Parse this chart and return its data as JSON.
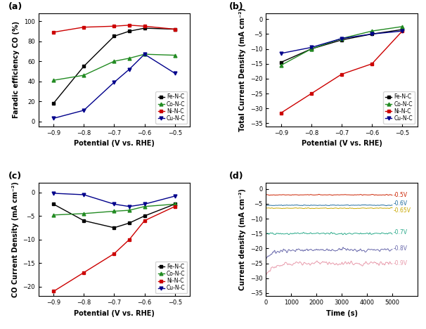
{
  "panel_a": {
    "title": "(a)",
    "xlabel": "Potential (V vs. RHE)",
    "ylabel": "Faradic efficiency CO (%)",
    "xlim": [
      -0.95,
      -0.45
    ],
    "ylim": [
      -5,
      108
    ],
    "xticks": [
      -0.9,
      -0.8,
      -0.7,
      -0.6,
      -0.5
    ],
    "yticks": [
      0,
      20,
      40,
      60,
      80,
      100
    ],
    "series": {
      "Fe-N-C": {
        "x": [
          -0.9,
          -0.8,
          -0.7,
          -0.65,
          -0.6,
          -0.5
        ],
        "y": [
          18,
          55,
          85,
          90,
          93,
          92
        ],
        "color": "#000000",
        "marker": "s",
        "linestyle": "-"
      },
      "Co-N-C": {
        "x": [
          -0.9,
          -0.8,
          -0.7,
          -0.65,
          -0.6,
          -0.5
        ],
        "y": [
          41,
          46,
          60,
          63,
          67,
          66
        ],
        "color": "#228B22",
        "marker": "^",
        "linestyle": "-"
      },
      "Ni-N-C": {
        "x": [
          -0.9,
          -0.8,
          -0.7,
          -0.65,
          -0.6,
          -0.5
        ],
        "y": [
          89,
          94,
          95,
          96,
          95,
          92
        ],
        "color": "#CC0000",
        "marker": "s",
        "linestyle": "-"
      },
      "Cu-N-C": {
        "x": [
          -0.9,
          -0.8,
          -0.7,
          -0.65,
          -0.6,
          -0.5
        ],
        "y": [
          3,
          11,
          39,
          52,
          67,
          48
        ],
        "color": "#00008B",
        "marker": "v",
        "linestyle": "-"
      }
    }
  },
  "panel_b": {
    "title": "(b)",
    "xlabel": "Potential (V vs. RHE)",
    "ylabel": "Total Current Density (mA cm⁻²)",
    "xlim": [
      -0.95,
      -0.45
    ],
    "ylim": [
      -36,
      2
    ],
    "xticks": [
      -0.9,
      -0.8,
      -0.7,
      -0.6,
      -0.5
    ],
    "yticks": [
      0,
      -5,
      -10,
      -15,
      -20,
      -25,
      -30,
      -35
    ],
    "series": {
      "Fe-N-C": {
        "x": [
          -0.9,
          -0.8,
          -0.7,
          -0.6,
          -0.5
        ],
        "y": [
          -14.5,
          -10.0,
          -7.0,
          -5.0,
          -3.5
        ],
        "color": "#000000",
        "marker": "s",
        "linestyle": "-"
      },
      "Co-N-C": {
        "x": [
          -0.9,
          -0.8,
          -0.7,
          -0.6,
          -0.5
        ],
        "y": [
          -15.5,
          -10.0,
          -6.5,
          -4.0,
          -2.5
        ],
        "color": "#228B22",
        "marker": "^",
        "linestyle": "-"
      },
      "Ni-N-C": {
        "x": [
          -0.9,
          -0.8,
          -0.7,
          -0.6,
          -0.5
        ],
        "y": [
          -31.5,
          -25.0,
          -18.5,
          -15.0,
          -4.0
        ],
        "color": "#CC0000",
        "marker": "s",
        "linestyle": "-"
      },
      "Cu-N-C": {
        "x": [
          -0.9,
          -0.8,
          -0.7,
          -0.6,
          -0.5
        ],
        "y": [
          -11.5,
          -9.5,
          -6.5,
          -5.0,
          -4.0
        ],
        "color": "#00008B",
        "marker": "v",
        "linestyle": "-"
      }
    }
  },
  "panel_c": {
    "title": "(c)",
    "xlabel": "Potential (V vs. RHE)",
    "ylabel": "CO Current Density (mA cm⁻²)",
    "xlim": [
      -0.95,
      -0.45
    ],
    "ylim": [
      -22,
      2
    ],
    "xticks": [
      -0.9,
      -0.8,
      -0.7,
      -0.6,
      -0.5
    ],
    "yticks": [
      0,
      -5,
      -10,
      -15,
      -20
    ],
    "series": {
      "Fe-N-C": {
        "x": [
          -0.9,
          -0.8,
          -0.7,
          -0.65,
          -0.6,
          -0.5
        ],
        "y": [
          -2.5,
          -6.0,
          -7.5,
          -6.5,
          -5.0,
          -2.5
        ],
        "color": "#000000",
        "marker": "s",
        "linestyle": "-"
      },
      "Co-N-C": {
        "x": [
          -0.9,
          -0.8,
          -0.7,
          -0.65,
          -0.6,
          -0.5
        ],
        "y": [
          -4.8,
          -4.5,
          -4.0,
          -3.8,
          -3.0,
          -2.5
        ],
        "color": "#228B22",
        "marker": "^",
        "linestyle": "-"
      },
      "Ni-N-C": {
        "x": [
          -0.9,
          -0.8,
          -0.7,
          -0.65,
          -0.6,
          -0.5
        ],
        "y": [
          -21.0,
          -17.0,
          -13.0,
          -10.0,
          -6.0,
          -3.0
        ],
        "color": "#CC0000",
        "marker": "s",
        "linestyle": "-"
      },
      "Cu-N-C": {
        "x": [
          -0.9,
          -0.8,
          -0.7,
          -0.65,
          -0.6,
          -0.5
        ],
        "y": [
          -0.2,
          -0.5,
          -2.5,
          -3.0,
          -2.5,
          -0.8
        ],
        "color": "#00008B",
        "marker": "v",
        "linestyle": "-"
      }
    }
  },
  "panel_d": {
    "title": "(d)",
    "xlabel": "Time (s)",
    "ylabel": "Current density (mA cm⁻²)",
    "xlim": [
      0,
      6000
    ],
    "ylim": [
      -36,
      2
    ],
    "xticks": [
      0,
      1000,
      2000,
      3000,
      4000,
      5000
    ],
    "yticks": [
      0,
      -5,
      -10,
      -15,
      -20,
      -25,
      -30,
      -35
    ],
    "series": {
      "-0.5V": {
        "mean": -2.0,
        "noise": 0.15,
        "color": "#CC2200",
        "label": "-0.5V",
        "settle": -2.0
      },
      "-0.6V": {
        "mean": -5.5,
        "noise": 0.15,
        "color": "#1E6B9E",
        "label": "-0.6V",
        "settle": -5.5
      },
      "-0.65V": {
        "mean": -6.5,
        "noise": 0.15,
        "color": "#C8A800",
        "label": "-0.65V",
        "settle": -6.5
      },
      "-0.7V": {
        "mean": -15.0,
        "noise": 0.4,
        "color": "#2AAA8A",
        "label": "-0.7V",
        "settle": -15.0
      },
      "-0.8V": {
        "mean": -20.5,
        "noise": 0.8,
        "color": "#6666AA",
        "label": "-0.8V",
        "settle": -20.5,
        "start": -23.0
      },
      "-0.9V": {
        "mean": -25.0,
        "noise": 0.8,
        "color": "#E899AA",
        "label": "-0.9V",
        "settle": -25.0,
        "start": -29.0
      }
    }
  },
  "legend_labels": [
    "Fe-N-C",
    "Co-N-C",
    "Ni-N-C",
    "Cu-N-C"
  ],
  "legend_colors": [
    "#000000",
    "#228B22",
    "#CC0000",
    "#00008B"
  ],
  "legend_markers": [
    "s",
    "^",
    "s",
    "v"
  ]
}
